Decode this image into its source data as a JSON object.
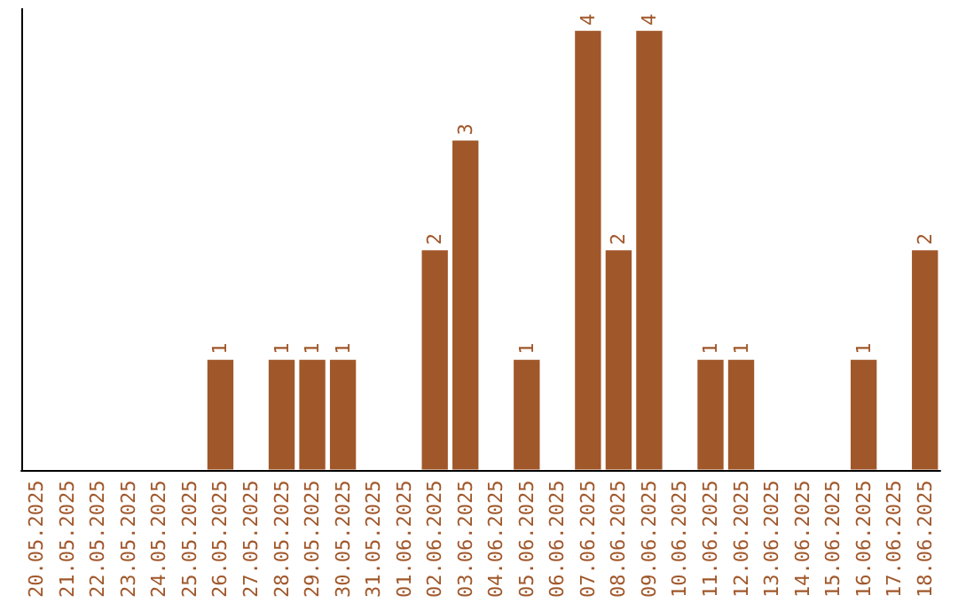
{
  "chart_data": {
    "type": "bar",
    "categories": [
      "20.05.2025",
      "21.05.2025",
      "22.05.2025",
      "23.05.2025",
      "24.05.2025",
      "25.05.2025",
      "26.05.2025",
      "27.05.2025",
      "28.05.2025",
      "29.05.2025",
      "30.05.2025",
      "31.05.2025",
      "01.06.2025",
      "02.06.2025",
      "03.06.2025",
      "04.06.2025",
      "05.06.2025",
      "06.06.2025",
      "07.06.2025",
      "08.06.2025",
      "09.06.2025",
      "10.06.2025",
      "11.06.2025",
      "12.06.2025",
      "13.06.2025",
      "14.06.2025",
      "15.06.2025",
      "16.06.2025",
      "17.06.2025",
      "18.06.2025"
    ],
    "values": [
      0,
      0,
      0,
      0,
      0,
      0,
      1,
      0,
      1,
      1,
      1,
      0,
      0,
      2,
      3,
      0,
      1,
      0,
      4,
      2,
      4,
      0,
      1,
      1,
      0,
      0,
      0,
      1,
      0,
      2
    ],
    "value_labels": [
      null,
      null,
      null,
      null,
      null,
      null,
      "1",
      null,
      "1",
      "1",
      "1",
      null,
      null,
      "2",
      "3",
      null,
      "1",
      null,
      "4",
      "2",
      "4",
      null,
      "1",
      "1",
      null,
      null,
      null,
      "1",
      null,
      "2"
    ],
    "color": "#a0572a",
    "ylim": [
      0,
      4.2
    ],
    "tick_labels": "x"
  }
}
